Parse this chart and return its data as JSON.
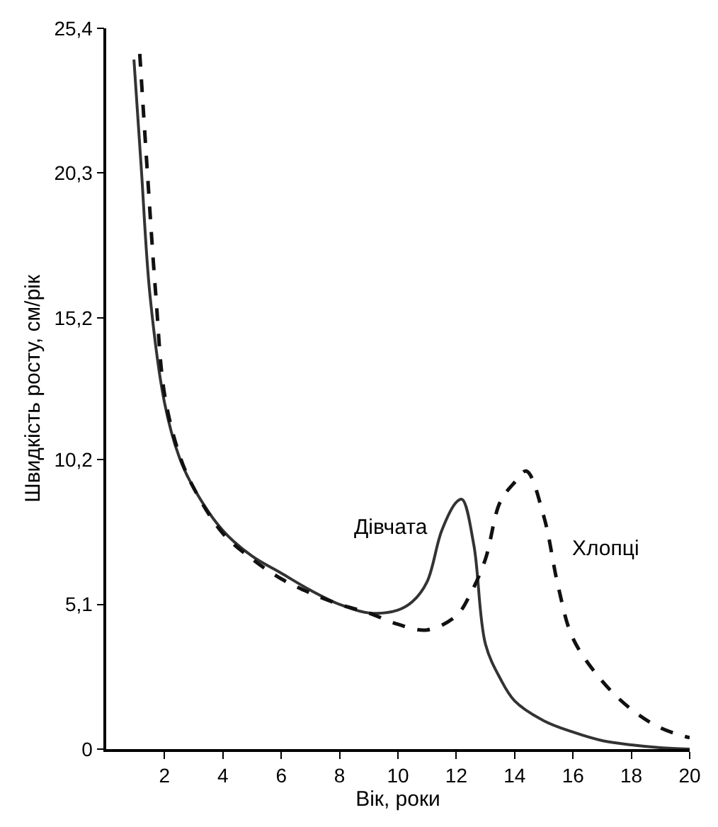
{
  "chart_data": {
    "type": "line",
    "xlabel": "Вік, роки",
    "ylabel": "Швидкість росту, см/рік",
    "xlim": [
      0,
      20
    ],
    "xticks": [
      2,
      4,
      6,
      8,
      10,
      12,
      14,
      16,
      18,
      20
    ],
    "ylim": [
      0,
      25.4
    ],
    "yticks": [
      0,
      {
        "value": 5.1,
        "label": "5,1"
      },
      {
        "value": 10.2,
        "label": "10,2"
      },
      {
        "value": 15.2,
        "label": "15,2"
      },
      {
        "value": 20.3,
        "label": "20,3"
      },
      {
        "value": 25.4,
        "label": "25,4"
      }
    ],
    "legend": false,
    "marker": "none",
    "series": [
      {
        "name": "Дівчата",
        "color": "#333333",
        "line_style": "solid",
        "x": [
          0.95,
          1.2,
          1.5,
          2,
          2.5,
          3,
          4,
          5,
          6,
          7,
          8,
          9,
          10,
          10.5,
          11,
          11.5,
          12,
          12.2,
          12.6,
          13,
          13.5,
          14,
          15,
          16,
          17,
          18,
          19,
          20
        ],
        "values": [
          24.3,
          20.5,
          16,
          12.2,
          10.3,
          9.2,
          7.7,
          6.8,
          6.2,
          5.6,
          5.1,
          4.8,
          4.9,
          5.2,
          5.9,
          7.7,
          8.7,
          8.8,
          7.2,
          3.7,
          2.5,
          1.7,
          1,
          0.6,
          0.3,
          0.15,
          0.05,
          0
        ]
      },
      {
        "name": "Хлопці",
        "color": "#111111",
        "line_style": "dashed",
        "x": [
          1.15,
          1.4,
          1.7,
          2,
          2.5,
          3,
          4,
          5,
          6,
          7,
          8,
          9,
          10,
          11,
          12,
          12.5,
          13,
          13.5,
          14,
          14.4,
          15,
          15.5,
          16,
          17,
          18,
          19,
          20
        ],
        "values": [
          24.5,
          20.5,
          16,
          12.5,
          10.4,
          9.2,
          7.6,
          6.7,
          6.0,
          5.5,
          5.1,
          4.8,
          4.4,
          4.2,
          4.7,
          5.5,
          6.7,
          8.7,
          9.4,
          9.8,
          8.2,
          5.7,
          3.9,
          2.4,
          1.4,
          0.75,
          0.4
        ]
      }
    ]
  }
}
